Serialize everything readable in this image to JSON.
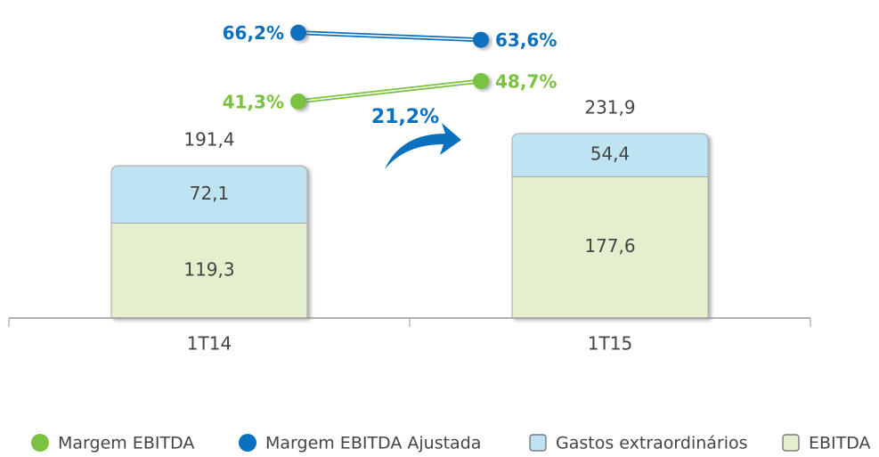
{
  "chart_data": {
    "type": "bar",
    "categories": [
      "1T14",
      "1T15"
    ],
    "series": [
      {
        "name": "EBITDA",
        "color": "#e3efcd",
        "values": [
          119.3,
          177.6
        ],
        "value_labels": [
          "119,3",
          "177,6"
        ]
      },
      {
        "name": "Gastos extraordinários",
        "color": "#bfe4f1",
        "values": [
          72.1,
          54.4
        ],
        "value_labels": [
          "72,1",
          "54,4"
        ]
      }
    ],
    "totals": {
      "values": [
        191.4,
        231.9
      ],
      "value_labels": [
        "191,4",
        "231,9"
      ]
    },
    "lines": [
      {
        "name": "Margem EBITDA",
        "color": "#7cc242",
        "axis": "y2",
        "values": [
          41.3,
          48.7
        ],
        "value_labels": [
          "41,3%",
          "48,7%"
        ]
      },
      {
        "name": "Margem EBITDA Ajustada",
        "color": "#0a71bf",
        "axis": "y2",
        "values": [
          66.2,
          63.6
        ],
        "value_labels": [
          "66,2%",
          "63,6%"
        ]
      }
    ],
    "annotation": "21,2%",
    "ylim": [
      0,
      400
    ],
    "y2lim": [
      -37,
      78
    ],
    "legend": "bottom"
  }
}
